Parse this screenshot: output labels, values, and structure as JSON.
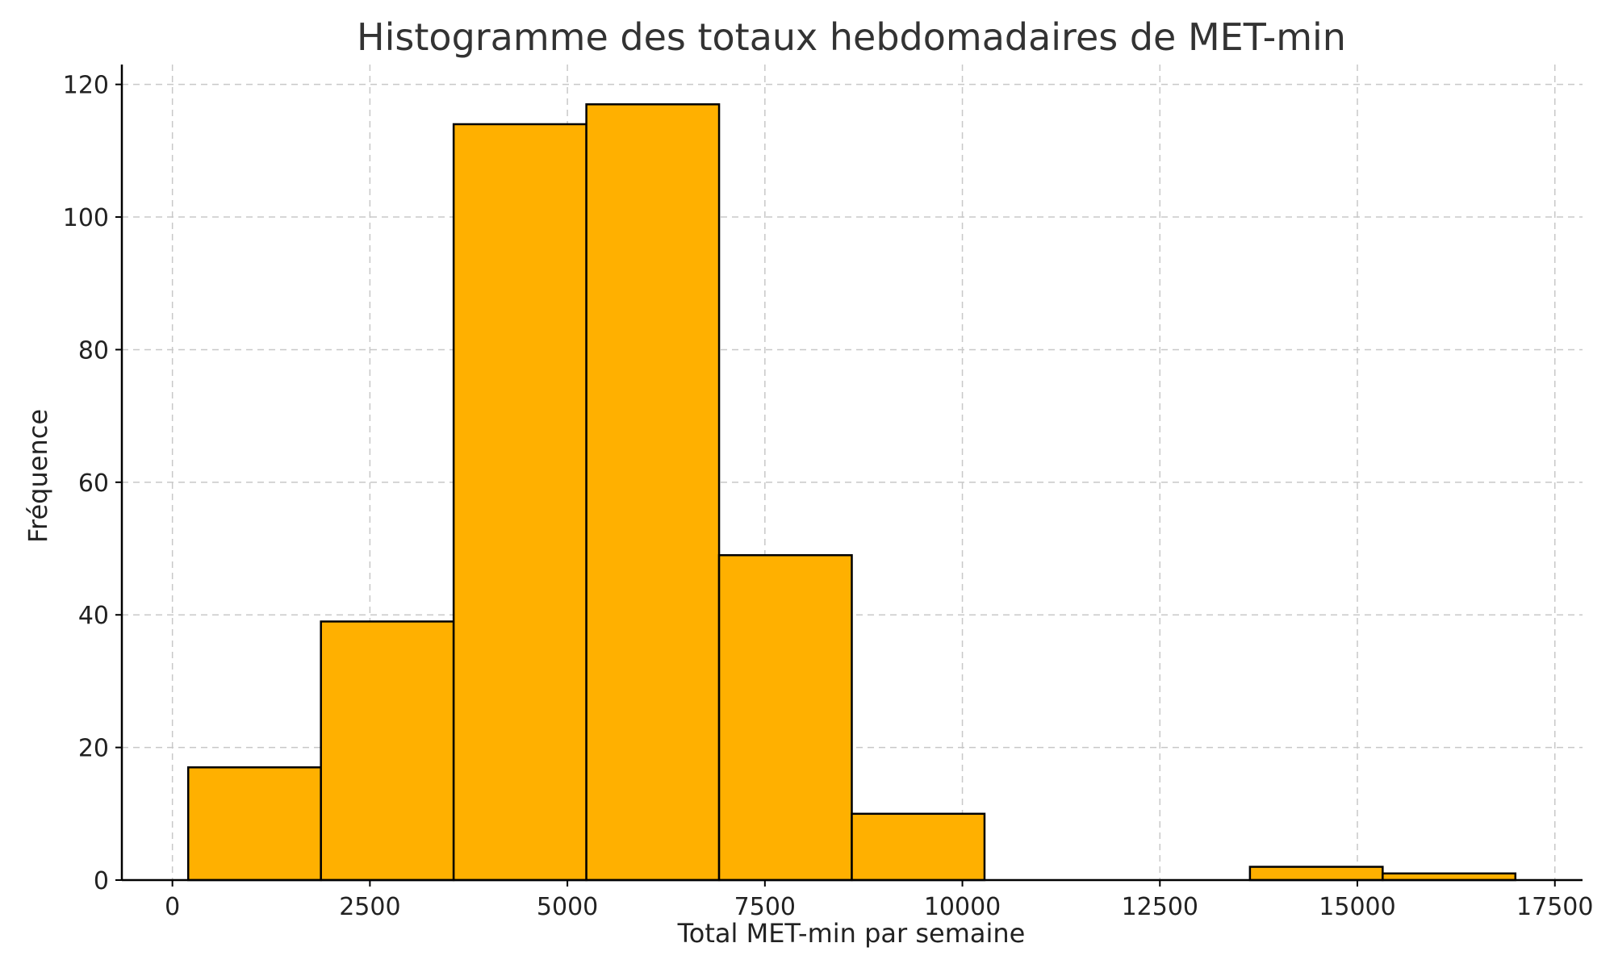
{
  "chart_data": {
    "type": "bar",
    "title": "Histogramme des totaux hebdomadaires de MET-min",
    "xlabel": "Total MET-min par semaine",
    "ylabel": "Fréquence",
    "xlim": [
      -640,
      17850
    ],
    "ylim": [
      0,
      123
    ],
    "x_ticks": [
      0,
      2500,
      5000,
      7500,
      10000,
      12500,
      15000,
      17500
    ],
    "x_tick_labels": [
      "0",
      "2500",
      "5000",
      "7500",
      "10000",
      "12500",
      "15000",
      "17500"
    ],
    "y_ticks": [
      0,
      20,
      40,
      60,
      80,
      100,
      120
    ],
    "y_tick_labels": [
      "0",
      "20",
      "40",
      "60",
      "80",
      "100",
      "120"
    ],
    "grid": true,
    "bar_color": "#FFB000",
    "edge_color": "#000000",
    "bins": [
      {
        "start": 200,
        "end": 1880,
        "value": 17
      },
      {
        "start": 1880,
        "end": 3560,
        "value": 39
      },
      {
        "start": 3560,
        "end": 5240,
        "value": 114
      },
      {
        "start": 5240,
        "end": 6920,
        "value": 117
      },
      {
        "start": 6920,
        "end": 8600,
        "value": 49
      },
      {
        "start": 8600,
        "end": 10280,
        "value": 10
      },
      {
        "start": 10280,
        "end": 11960,
        "value": 0
      },
      {
        "start": 11960,
        "end": 13640,
        "value": 0
      },
      {
        "start": 13640,
        "end": 15320,
        "value": 2
      },
      {
        "start": 15320,
        "end": 17000,
        "value": 1
      }
    ]
  }
}
